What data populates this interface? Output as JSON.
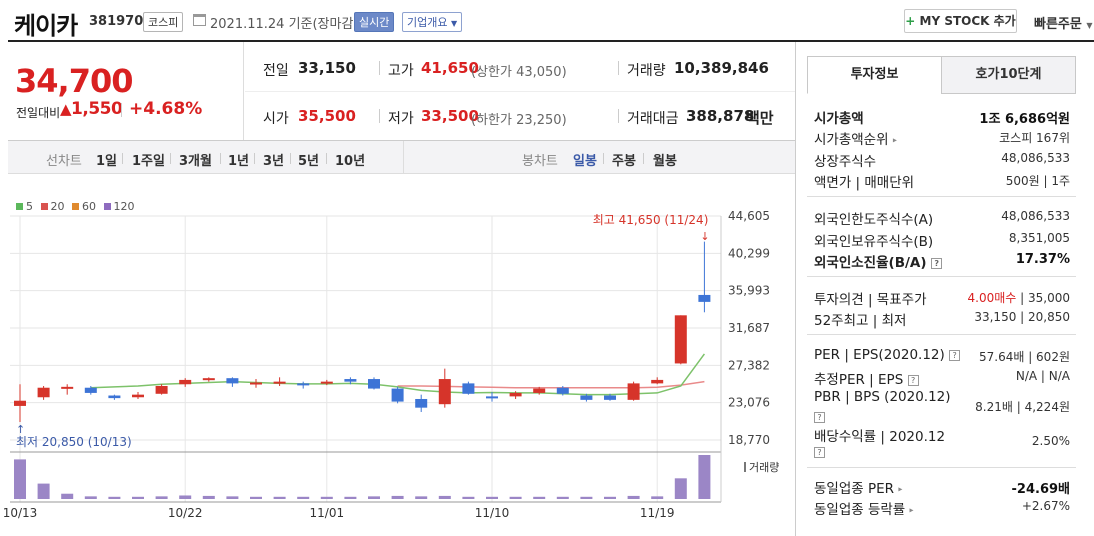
{
  "header": {
    "name": "케이카",
    "code": "381970",
    "market_tag": "코스피",
    "date_text": "2021.11.24 기준(장마감)",
    "live_tag": "실시간",
    "company_tag": "기업개요",
    "mystock_label": "MY STOCK 추가",
    "quick_order_label": "빠른주문"
  },
  "price": {
    "current": "34,700",
    "prev_compare_label": "전일대비",
    "change": "1,550",
    "change_pct": "+4.68%"
  },
  "stats": {
    "prev_label": "전일",
    "prev_value": "33,150",
    "high_label": "고가",
    "high_value": "41,650",
    "upper_limit": "(상한가 43,050)",
    "volume_label": "거래량",
    "volume_value": "10,389,846",
    "open_label": "시가",
    "open_value": "35,500",
    "low_label": "저가",
    "low_value": "33,500",
    "lower_limit": "(하한가 23,250)",
    "amount_label": "거래대금",
    "amount_value": "388,878",
    "amount_unit": "백만"
  },
  "period_bar": {
    "line_chart_label": "선차트",
    "periods": [
      "1일",
      "1주일",
      "3개월",
      "1년",
      "3년",
      "5년",
      "10년"
    ],
    "candle_chart_label": "봉차트",
    "candle_periods": [
      "일봉",
      "주봉",
      "월봉"
    ]
  },
  "tabs": {
    "info": "투자정보",
    "orderbook": "호가10단계"
  },
  "info": {
    "mcap_label": "시가총액",
    "mcap_value": "1조 6,686억원",
    "mcap_rank_label": "시가총액순위",
    "mcap_rank_value": "코스피 167위",
    "shares_label": "상장주식수",
    "shares_value": "48,086,533",
    "face_label": "액면가 | 매매단위",
    "face_value": "500원 | 1주",
    "foreign_limit_label": "외국인한도주식수(A)",
    "foreign_limit_value": "48,086,533",
    "foreign_hold_label": "외국인보유주식수(B)",
    "foreign_hold_value": "8,351,005",
    "foreign_ratio_label": "외국인소진율(B/A)",
    "foreign_ratio_value": "17.37%",
    "opinion_label": "투자의견 | 목표주가",
    "opinion_value": "4.00매수",
    "target_value": " | 35,000",
    "w52_label": "52주최고 | 최저",
    "w52_value": "33,150 | 20,850",
    "per_label": "PER | EPS(2020.12)",
    "per_value": "57.64배 | 602원",
    "est_per_label": "추정PER | EPS",
    "est_per_value": "N/A | N/A",
    "pbr_label": "PBR | BPS (2020.12)",
    "pbr_value": "8.21배 | 4,224원",
    "div_label": "배당수익률 | 2020.12",
    "div_value": "2.50%",
    "sector_per_label": "동일업종 PER",
    "sector_per_value": "-24.69배",
    "sector_rate_label": "동일업종 등락률",
    "sector_rate_value": "+2.67%"
  },
  "chart_data": {
    "type": "candlestick",
    "legend": [
      {
        "label": "5",
        "color": "#5cb85c"
      },
      {
        "label": "20",
        "color": "#d9534f"
      },
      {
        "label": "60",
        "color": "#e08a2e"
      },
      {
        "label": "120",
        "color": "#8e6bbf"
      }
    ],
    "y_ticks": [
      "44,605",
      "40,299",
      "35,993",
      "31,687",
      "27,382",
      "23,076",
      "18,770"
    ],
    "ylim": [
      18770,
      44605
    ],
    "x_ticks": [
      {
        "label": "10/13",
        "index": 0
      },
      {
        "label": "10/22",
        "index": 7
      },
      {
        "label": "11/01",
        "index": 13
      },
      {
        "label": "11/10",
        "index": 20
      },
      {
        "label": "11/19",
        "index": 27
      }
    ],
    "max_annotation": "최고 41,650 (11/24)",
    "min_annotation": "최저 20,850 (10/13)",
    "volume_label": "거래량",
    "candles": [
      {
        "o": 22700,
        "c": 23300,
        "h": 25200,
        "l": 20850,
        "v": 0.9
      },
      {
        "o": 23700,
        "c": 24800,
        "h": 25000,
        "l": 23400,
        "v": 0.35
      },
      {
        "o": 24700,
        "c": 24900,
        "h": 25200,
        "l": 24000,
        "v": 0.12
      },
      {
        "o": 24800,
        "c": 24200,
        "h": 25000,
        "l": 24000,
        "v": 0.06
      },
      {
        "o": 23900,
        "c": 23600,
        "h": 24000,
        "l": 23400,
        "v": 0.05
      },
      {
        "o": 23700,
        "c": 24000,
        "h": 24300,
        "l": 23500,
        "v": 0.05
      },
      {
        "o": 24100,
        "c": 25000,
        "h": 25200,
        "l": 24000,
        "v": 0.06
      },
      {
        "o": 25200,
        "c": 25700,
        "h": 25900,
        "l": 24900,
        "v": 0.08
      },
      {
        "o": 25700,
        "c": 25900,
        "h": 26000,
        "l": 25500,
        "v": 0.07
      },
      {
        "o": 25900,
        "c": 25300,
        "h": 26000,
        "l": 24900,
        "v": 0.06
      },
      {
        "o": 25300,
        "c": 25400,
        "h": 25800,
        "l": 24800,
        "v": 0.05
      },
      {
        "o": 25500,
        "c": 25500,
        "h": 26000,
        "l": 25000,
        "v": 0.05
      },
      {
        "o": 25300,
        "c": 25100,
        "h": 25500,
        "l": 24700,
        "v": 0.05
      },
      {
        "o": 25400,
        "c": 25500,
        "h": 25700,
        "l": 25100,
        "v": 0.05
      },
      {
        "o": 25800,
        "c": 25500,
        "h": 26000,
        "l": 25200,
        "v": 0.05
      },
      {
        "o": 25800,
        "c": 24700,
        "h": 26000,
        "l": 24600,
        "v": 0.06
      },
      {
        "o": 24700,
        "c": 23200,
        "h": 24900,
        "l": 23000,
        "v": 0.07
      },
      {
        "o": 23500,
        "c": 22500,
        "h": 24000,
        "l": 22000,
        "v": 0.06
      },
      {
        "o": 22900,
        "c": 25800,
        "h": 27000,
        "l": 22500,
        "v": 0.07
      },
      {
        "o": 25300,
        "c": 24100,
        "h": 25500,
        "l": 24000,
        "v": 0.05
      },
      {
        "o": 23800,
        "c": 23700,
        "h": 24300,
        "l": 23200,
        "v": 0.05
      },
      {
        "o": 23800,
        "c": 24200,
        "h": 24400,
        "l": 23500,
        "v": 0.05
      },
      {
        "o": 24200,
        "c": 24700,
        "h": 24900,
        "l": 24000,
        "v": 0.05
      },
      {
        "o": 24800,
        "c": 24100,
        "h": 25000,
        "l": 23900,
        "v": 0.05
      },
      {
        "o": 23900,
        "c": 23400,
        "h": 24100,
        "l": 23200,
        "v": 0.05
      },
      {
        "o": 23900,
        "c": 23400,
        "h": 24100,
        "l": 23300,
        "v": 0.05
      },
      {
        "o": 23400,
        "c": 25300,
        "h": 25500,
        "l": 23300,
        "v": 0.07
      },
      {
        "o": 25300,
        "c": 25700,
        "h": 26000,
        "l": 25200,
        "v": 0.06
      },
      {
        "o": 27600,
        "c": 33150,
        "h": 33150,
        "l": 27500,
        "v": 0.47
      },
      {
        "o": 35500,
        "c": 34700,
        "h": 41650,
        "l": 33500,
        "v": 1.0
      }
    ],
    "ma5": [
      24800,
      24900,
      25000,
      25200,
      25300,
      25400,
      25500,
      25400,
      25300,
      25250,
      25250,
      25300,
      25200,
      24900,
      24500,
      24300,
      24200,
      24250,
      24200,
      24200,
      24100,
      24000,
      24000,
      24100,
      24200,
      25000,
      28700
    ],
    "ma20": [
      25000,
      25000,
      24950,
      24900,
      24850,
      24800,
      24800,
      24800,
      24800,
      24800,
      24800,
      24850,
      25100,
      25500
    ]
  }
}
